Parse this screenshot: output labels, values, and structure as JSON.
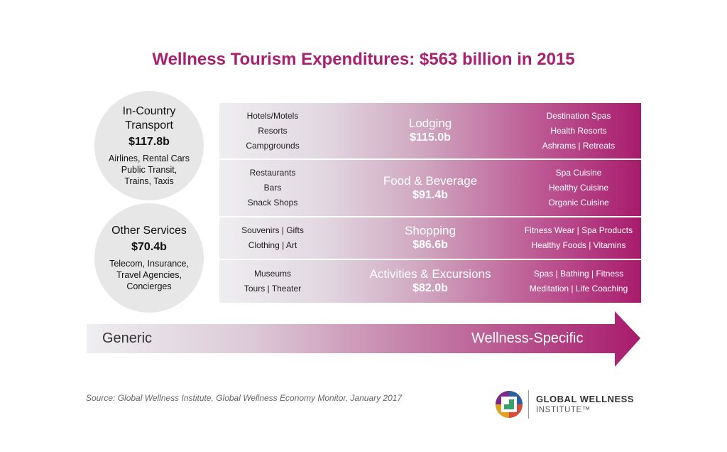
{
  "title": "Wellness Tourism Expenditures: $563 billion in 2015",
  "circles": [
    {
      "title": "In-Country Transport",
      "value": "$117.8b",
      "lines": [
        "Airlines, Rental Cars",
        "Public Transit,",
        "Trains, Taxis"
      ]
    },
    {
      "title": "Other Services",
      "value": "$70.4b",
      "lines": [
        "Telecom, Insurance,",
        "Travel Agencies,",
        "Concierges"
      ]
    }
  ],
  "rows": [
    {
      "category": "Lodging",
      "value": "$115.0b",
      "generic": [
        "Hotels/Motels",
        "Resorts",
        "Campgrounds"
      ],
      "wellness": [
        "Destination Spas",
        "Health Resorts",
        "Ashrams | Retreats"
      ]
    },
    {
      "category": "Food & Beverage",
      "value": "$91.4b",
      "generic": [
        "Restaurants",
        "Bars",
        "Snack Shops"
      ],
      "wellness": [
        "Spa Cuisine",
        "Healthy Cuisine",
        "Organic Cuisine"
      ]
    },
    {
      "category": "Shopping",
      "value": "$86.6b",
      "generic": [
        "Souvenirs | Gifts",
        "Clothing | Art"
      ],
      "wellness": [
        "Fitness Wear | Spa Products",
        "Healthy Foods | Vitamins"
      ]
    },
    {
      "category": "Activities & Excursions",
      "value": "$82.0b",
      "generic": [
        "Museums",
        "Tours | Theater"
      ],
      "wellness": [
        "Spas | Bathing | Fitness",
        "Meditation | Life Coaching"
      ]
    }
  ],
  "arrow": {
    "left_label": "Generic",
    "right_label": "Wellness-Specific"
  },
  "source": "Source: Global Wellness Institute, Global Wellness Economy Monitor, January 2017",
  "logo": {
    "line1": "GLOBAL WELLNESS",
    "line2": "INSTITUTE™"
  },
  "colors": {
    "accent": "#a8206f",
    "circle_bg": "#e7e7e8",
    "gradient_start": "#eeeef0",
    "gradient_end": "#a81b6c"
  }
}
